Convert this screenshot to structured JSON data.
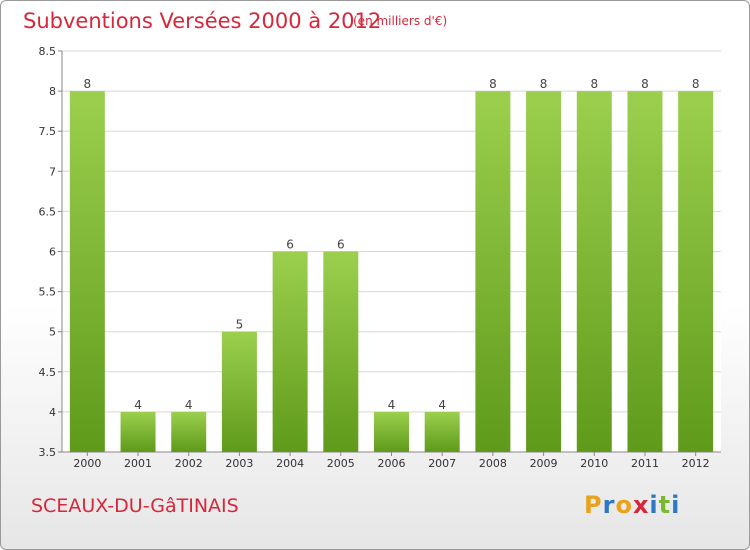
{
  "chart_data": {
    "type": "bar",
    "title": "Subventions Versées 2000 à 2012",
    "subtitle": "(en milliers d'€)",
    "categories": [
      "2000",
      "2001",
      "2002",
      "2003",
      "2004",
      "2005",
      "2006",
      "2007",
      "2008",
      "2009",
      "2010",
      "2011",
      "2012"
    ],
    "values": [
      8,
      4,
      4,
      5,
      6,
      6,
      4,
      4,
      8,
      8,
      8,
      8,
      8
    ],
    "ylim": [
      3.5,
      8.5
    ],
    "yticks": [
      "3.5",
      "4",
      "4.5",
      "5",
      "5.5",
      "6",
      "6.5",
      "7",
      "7.5",
      "8",
      "8.5"
    ],
    "grid": true,
    "bar_color": "#7ab832"
  },
  "commune": "SCEAUX-DU-GâTINAIS",
  "logo": [
    "P",
    "r",
    "o",
    "x",
    "i",
    "t",
    "i"
  ],
  "logo_colors": [
    "#e8a21e",
    "#2f78c4",
    "#e8a21e",
    "#d9263a",
    "#2f78c4",
    "#7ab832",
    "#2f78c4"
  ],
  "title_color": "#d9263a"
}
